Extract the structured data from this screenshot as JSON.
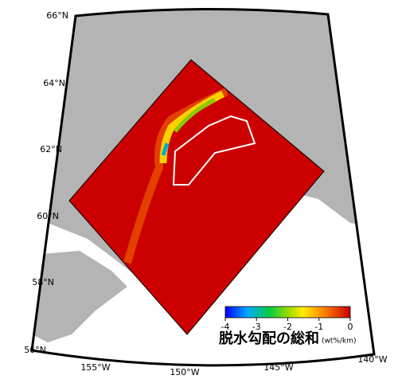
{
  "map": {
    "lat_labels": [
      "66°N",
      "64°N",
      "62°N",
      "60°N",
      "58°N",
      "56°N"
    ],
    "lon_labels": [
      "155°W",
      "150°W",
      "145°W",
      "140°W"
    ]
  },
  "colorbar": {
    "title": "脱水勾配の総和",
    "unit": "(wt%/km)",
    "range": [
      -4,
      0
    ],
    "ticks": [
      -4,
      -3,
      -2,
      -1,
      0
    ]
  }
}
